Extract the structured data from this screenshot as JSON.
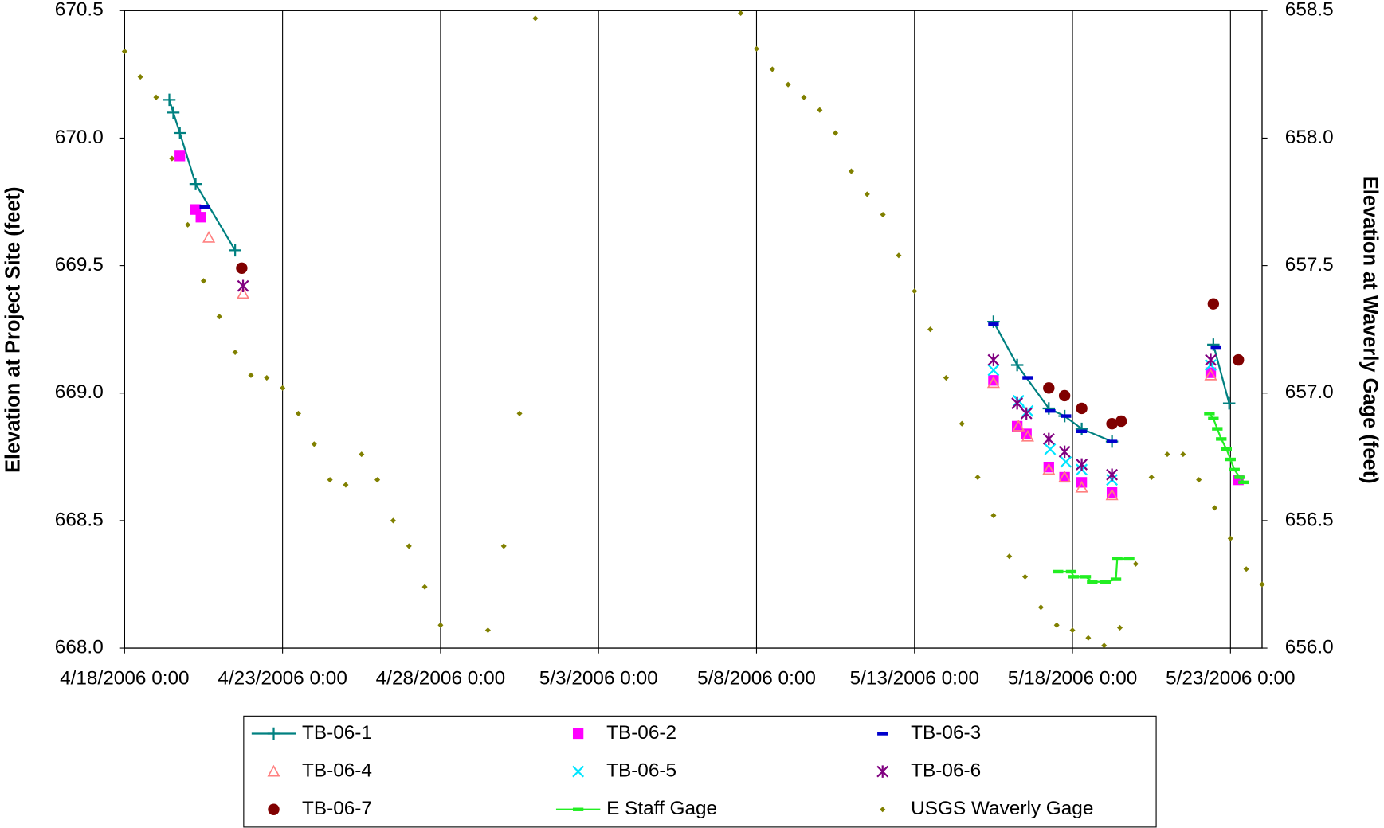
{
  "chart_data": {
    "type": "scatter",
    "xlabel": null,
    "ylabel": "Elevation at Project Site (feet)",
    "y2label": "Elevation at Waverly Gage (feet)",
    "xlim": [
      "2006-04-18T00:00",
      "2006-05-24T00:00"
    ],
    "xticks": [
      {
        "value": "2006-04-18T00:00",
        "label": "4/18/2006 0:00"
      },
      {
        "value": "2006-04-23T00:00",
        "label": "4/23/2006 0:00"
      },
      {
        "value": "2006-04-28T00:00",
        "label": "4/28/2006 0:00"
      },
      {
        "value": "2006-05-03T00:00",
        "label": "5/3/2006 0:00"
      },
      {
        "value": "2006-05-08T00:00",
        "label": "5/8/2006 0:00"
      },
      {
        "value": "2006-05-13T00:00",
        "label": "5/13/2006 0:00"
      },
      {
        "value": "2006-05-18T00:00",
        "label": "5/18/2006 0:00"
      },
      {
        "value": "2006-05-23T00:00",
        "label": "5/23/2006 0:00"
      }
    ],
    "ylim": [
      668.0,
      670.5
    ],
    "yticks": [
      {
        "value": 668.0,
        "label": "668.0"
      },
      {
        "value": 668.5,
        "label": "668.5"
      },
      {
        "value": 669.0,
        "label": "669.0"
      },
      {
        "value": 669.5,
        "label": "669.5"
      },
      {
        "value": 670.0,
        "label": "670.0"
      },
      {
        "value": 670.5,
        "label": "670.5"
      }
    ],
    "y2lim": [
      656.0,
      658.5
    ],
    "y2ticks": [
      {
        "value": 656.0,
        "label": "656.0"
      },
      {
        "value": 656.5,
        "label": "656.5"
      },
      {
        "value": 657.0,
        "label": "657.0"
      },
      {
        "value": 657.5,
        "label": "657.5"
      },
      {
        "value": 658.0,
        "label": "658.0"
      },
      {
        "value": 658.5,
        "label": "658.5"
      }
    ],
    "grid": "x",
    "legend": "bottom",
    "series": [
      {
        "name": "TB-06-1",
        "color": "#008080",
        "marker": "plus",
        "line": true,
        "x": [
          "2006-04-19T10:00",
          "2006-04-19T13:00",
          "2006-04-19T18:00",
          "2006-04-20T06:00",
          "2006-04-21T12:00",
          null,
          "2006-05-15T12:00",
          "2006-05-16T06:00",
          "2006-05-17T06:00",
          "2006-05-17T18:00",
          "2006-05-18T07:00",
          "2006-05-19T06:00",
          null,
          "2006-05-22T11:00",
          "2006-05-22T23:00"
        ],
        "values": [
          670.15,
          670.1,
          670.02,
          669.82,
          669.56,
          null,
          669.28,
          669.11,
          668.94,
          668.91,
          668.86,
          668.81,
          null,
          669.19,
          668.96
        ]
      },
      {
        "name": "TB-06-2",
        "color": "#ff00ff",
        "marker": "square",
        "line": false,
        "x": [
          "2006-04-19T18:00",
          "2006-04-20T06:00",
          "2006-04-20T10:00",
          "2006-05-15T12:00",
          "2006-05-16T06:00",
          "2006-05-16T13:00",
          "2006-05-17T06:00",
          "2006-05-17T18:00",
          "2006-05-18T07:00",
          "2006-05-19T06:00",
          "2006-05-22T09:00",
          "2006-05-23T06:00"
        ],
        "values": [
          669.93,
          669.72,
          669.69,
          669.05,
          668.87,
          668.84,
          668.71,
          668.67,
          668.65,
          668.61,
          669.08,
          668.66
        ]
      },
      {
        "name": "TB-06-3",
        "color": "#0000cc",
        "marker": "dash",
        "line": false,
        "x": [
          "2006-04-20T13:00",
          "2006-05-15T12:00",
          "2006-05-16T14:00",
          "2006-05-17T07:00",
          "2006-05-17T19:00",
          "2006-05-18T07:00",
          "2006-05-19T06:00",
          "2006-05-22T13:00"
        ],
        "values": [
          669.73,
          669.27,
          669.06,
          668.93,
          668.91,
          668.85,
          668.81,
          669.18
        ]
      },
      {
        "name": "TB-06-4",
        "color": "#ff8080",
        "marker": "triangle",
        "line": false,
        "x": [
          "2006-04-20T16:00",
          "2006-04-21T18:00",
          "2006-05-15T12:00",
          "2006-05-16T07:00",
          "2006-05-16T14:00",
          "2006-05-17T06:00",
          "2006-05-17T18:00",
          "2006-05-18T07:00",
          "2006-05-19T06:00",
          "2006-05-22T09:00"
        ],
        "values": [
          669.61,
          669.39,
          669.04,
          668.87,
          668.83,
          668.7,
          668.67,
          668.63,
          668.6,
          669.07
        ]
      },
      {
        "name": "TB-06-5",
        "color": "#00e5ff",
        "marker": "x",
        "line": false,
        "x": [
          "2006-05-15T12:00",
          "2006-05-16T07:00",
          "2006-05-16T14:00",
          "2006-05-17T07:00",
          "2006-05-17T19:00",
          "2006-05-18T07:00",
          "2006-05-19T06:00",
          "2006-05-22T09:00"
        ],
        "values": [
          669.09,
          668.97,
          668.93,
          668.78,
          668.73,
          668.7,
          668.66,
          669.11
        ]
      },
      {
        "name": "TB-06-6",
        "color": "#800080",
        "marker": "asterisk",
        "line": false,
        "x": [
          "2006-04-21T18:00",
          "2006-05-15T12:00",
          "2006-05-16T06:00",
          "2006-05-16T13:00",
          "2006-05-17T06:00",
          "2006-05-17T18:00",
          "2006-05-18T07:00",
          "2006-05-19T06:00",
          "2006-05-22T09:00"
        ],
        "values": [
          669.42,
          669.13,
          668.96,
          668.92,
          668.82,
          668.77,
          668.72,
          668.68,
          669.13
        ]
      },
      {
        "name": "TB-06-7",
        "color": "#800000",
        "marker": "circle",
        "line": false,
        "x": [
          "2006-04-21T17:00",
          "2006-05-17T06:00",
          "2006-05-17T18:00",
          "2006-05-18T07:00",
          "2006-05-19T06:00",
          "2006-05-19T13:00",
          "2006-05-22T11:00",
          "2006-05-23T06:00"
        ],
        "values": [
          669.49,
          669.02,
          668.99,
          668.94,
          668.88,
          668.89,
          669.35,
          669.13
        ]
      },
      {
        "name": "E Staff Gage",
        "color": "#22ee22",
        "marker": "dash",
        "line": true,
        "x": [
          "2006-05-17T13:00",
          "2006-05-17T23:00",
          "2006-05-18T01:00",
          "2006-05-18T10:00",
          "2006-05-18T15:00",
          "2006-05-19T01:00",
          "2006-05-19T09:00",
          "2006-05-19T10:00",
          "2006-05-19T19:00",
          null,
          "2006-05-22T08:00",
          "2006-05-22T11:00",
          "2006-05-22T14:00",
          "2006-05-22T17:00",
          "2006-05-22T21:00",
          "2006-05-23T00:00",
          "2006-05-23T03:00",
          "2006-05-23T07:00",
          "2006-05-23T10:00"
        ],
        "values": [
          668.3,
          668.3,
          668.28,
          668.28,
          668.26,
          668.26,
          668.27,
          668.35,
          668.35,
          null,
          668.92,
          668.9,
          668.86,
          668.82,
          668.78,
          668.74,
          668.7,
          668.67,
          668.65
        ]
      },
      {
        "name": "USGS Waverly Gage",
        "color": "#808000",
        "marker": "diamond",
        "line": false,
        "axis": "y2",
        "x": [
          "2006-04-18T00:00",
          "2006-04-18T12:00",
          "2006-04-19T00:00",
          "2006-04-19T12:00",
          "2006-04-20T00:00",
          "2006-04-20T12:00",
          "2006-04-21T00:00",
          "2006-04-21T12:00",
          "2006-04-22T00:00",
          "2006-04-22T12:00",
          "2006-04-23T00:00",
          "2006-04-23T12:00",
          "2006-04-24T00:00",
          "2006-04-24T12:00",
          "2006-04-25T00:00",
          "2006-04-25T12:00",
          "2006-04-26T00:00",
          "2006-04-26T12:00",
          "2006-04-27T00:00",
          "2006-04-27T12:00",
          "2006-04-28T00:00",
          "2006-04-28T18:00",
          "2006-04-29T12:00",
          "2006-04-30T00:00",
          "2006-04-30T12:00",
          "2006-05-01T00:00",
          "2006-05-04T00:00",
          "2006-05-07T12:00",
          "2006-05-08T00:00",
          "2006-05-08T12:00",
          "2006-05-09T00:00",
          "2006-05-09T12:00",
          "2006-05-10T00:00",
          "2006-05-10T12:00",
          "2006-05-11T00:00",
          "2006-05-11T12:00",
          "2006-05-12T00:00",
          "2006-05-12T12:00",
          "2006-05-13T00:00",
          "2006-05-13T12:00",
          "2006-05-14T00:00",
          "2006-05-14T12:00",
          "2006-05-15T00:00",
          "2006-05-15T12:00",
          "2006-05-16T00:00",
          "2006-05-16T12:00",
          "2006-05-17T00:00",
          "2006-05-17T12:00",
          "2006-05-18T00:00",
          "2006-05-18T12:00",
          "2006-05-19T00:00",
          "2006-05-19T12:00",
          "2006-05-20T00:00",
          "2006-05-20T12:00",
          "2006-05-21T00:00",
          "2006-05-21T12:00",
          "2006-05-22T00:00",
          "2006-05-22T12:00",
          "2006-05-23T00:00",
          "2006-05-23T12:00",
          "2006-05-24T00:00"
        ],
        "values": [
          658.34,
          658.24,
          658.16,
          657.92,
          657.66,
          657.44,
          657.3,
          657.16,
          657.07,
          657.06,
          657.02,
          656.92,
          656.8,
          656.66,
          656.64,
          656.76,
          656.66,
          656.5,
          656.4,
          656.24,
          656.09,
          null,
          656.07,
          656.4,
          656.92,
          658.47,
          null,
          658.49,
          658.35,
          658.27,
          658.21,
          658.16,
          658.11,
          658.02,
          657.87,
          657.78,
          657.7,
          657.54,
          657.4,
          657.25,
          657.06,
          656.88,
          656.67,
          656.52,
          656.36,
          656.28,
          656.16,
          656.09,
          656.07,
          656.04,
          656.01,
          656.08,
          656.33,
          656.67,
          656.76,
          656.76,
          656.66,
          656.55,
          656.43,
          656.31,
          656.25
        ]
      }
    ]
  }
}
